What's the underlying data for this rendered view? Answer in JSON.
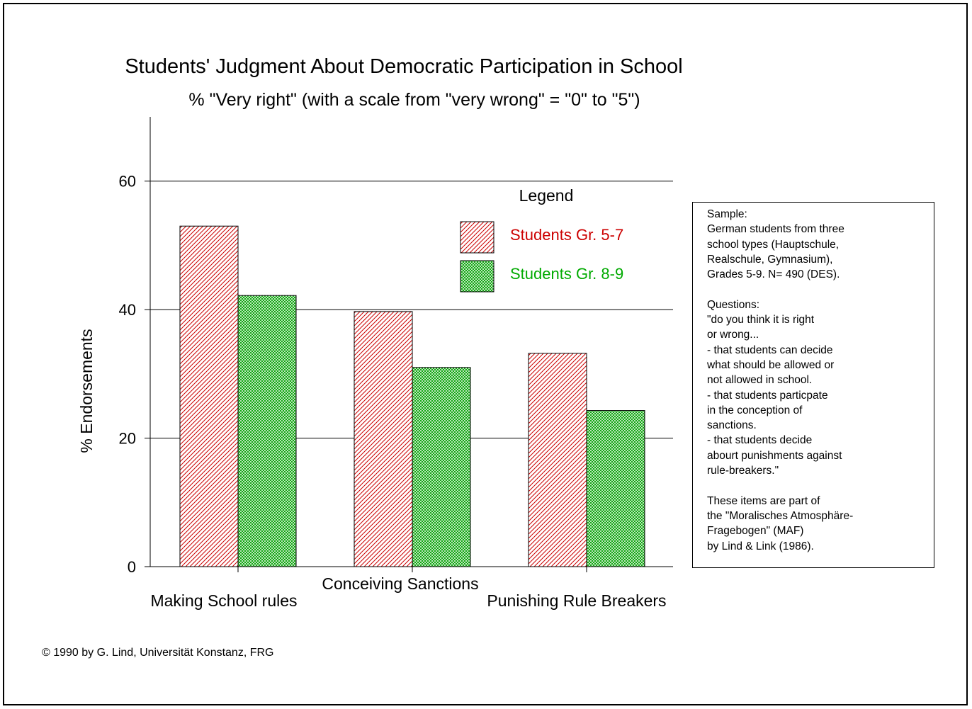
{
  "colors": {
    "series1": "#cc0000",
    "series2": "#00aa00",
    "axis": "#000000"
  },
  "chart_data": {
    "type": "bar",
    "title": "Students' Judgment About Democratic Participation in School",
    "subtitle": "% \"Very right\" (with a scale from \"very wrong\" = \"0\" to \"5\")",
    "xlabel": "",
    "ylabel": "% Endorsements",
    "ylim": [
      0,
      70
    ],
    "yticks": [
      "0",
      "20",
      "40",
      "60"
    ],
    "grid": true,
    "legend_title": "Legend",
    "legend_position": "top-right",
    "categories": [
      "Making School rules",
      "Conceiving Sanctions",
      "Punishing Rule Breakers"
    ],
    "series": [
      {
        "name": "Students Gr. 5-7",
        "values": [
          53,
          39.7,
          33.2
        ],
        "color": "#cc0000",
        "pattern": "diagonal-hatch"
      },
      {
        "name": "Students Gr. 8-9",
        "values": [
          42.2,
          31,
          24.3
        ],
        "color": "#00aa00",
        "pattern": "crosshatch"
      }
    ]
  },
  "note": {
    "lines": [
      "Sample:",
      "German students from three",
      "school types (Hauptschule,",
      "Realschule, Gymnasium),",
      "Grades 5-9. N= 490 (DES).",
      "",
      "Questions:",
      "\"do you think it is right",
      "or wrong...",
      "- that students can decide",
      "what should be allowed or",
      "not allowed in school.",
      "- that students particpate",
      "in the conception of",
      "sanctions.",
      "- that students decide",
      "abourt punishments against",
      "rule-breakers.\"",
      "",
      "These items are part of",
      "the \"Moralisches Atmosphäre-",
      "Fragebogen\" (MAF)",
      "by Lind & Link (1986)."
    ]
  },
  "credit": "© 1990 by G. Lind, Universität Konstanz, FRG"
}
